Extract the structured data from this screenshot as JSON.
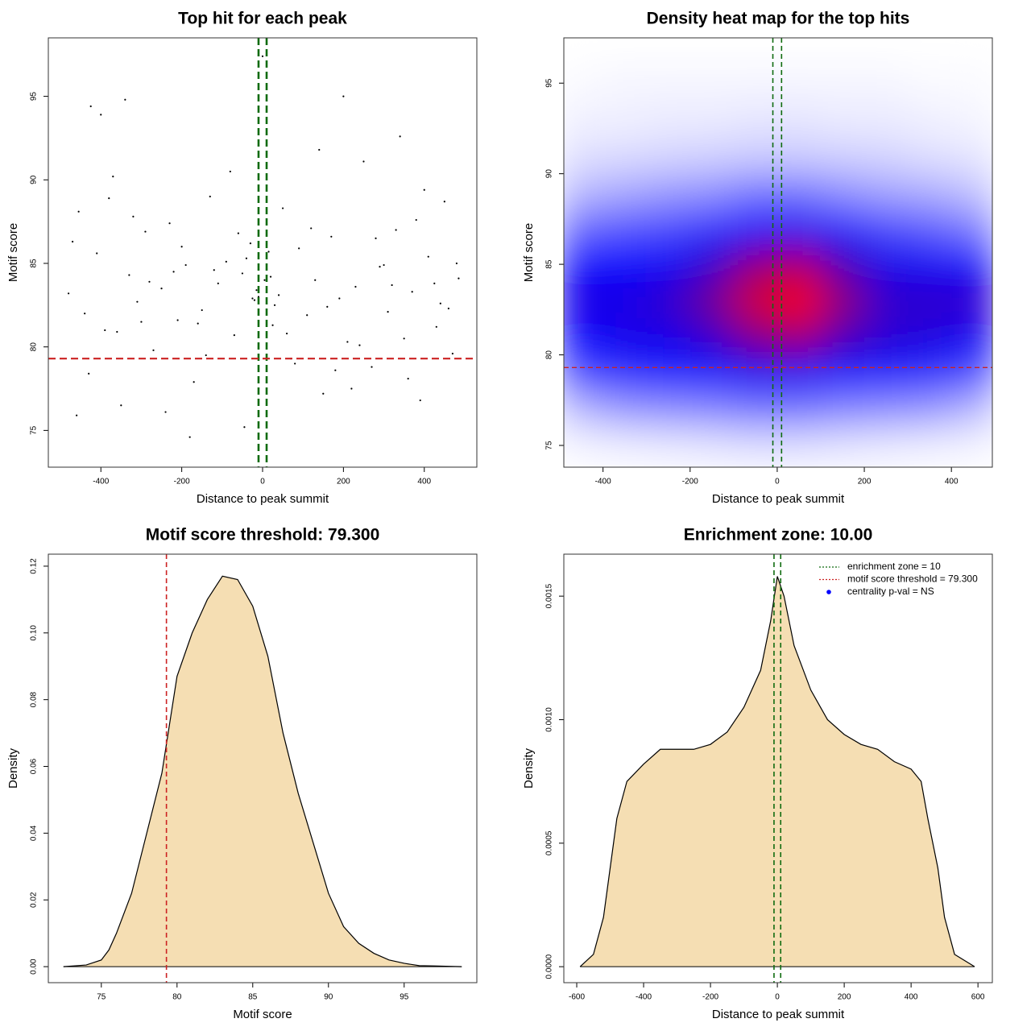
{
  "chart_data": [
    {
      "type": "scatter",
      "title": "Top hit for each peak",
      "xlabel": "Distance to peak summit",
      "ylabel": "Motif score",
      "xlim": [
        -530,
        530
      ],
      "ylim": [
        72.8,
        98.5
      ],
      "xticks": [
        -400,
        -200,
        0,
        200,
        400
      ],
      "yticks": [
        75,
        80,
        85,
        90,
        95
      ],
      "color": "#000000",
      "vlines": [
        -10,
        10
      ],
      "vline_color": "#0f6b0f",
      "hlines": [
        79.3
      ],
      "hline_color": "#cc2222",
      "x": [
        -480,
        -455,
        -430,
        -410,
        -390,
        -370,
        -350,
        -330,
        -310,
        -290,
        -270,
        -250,
        -230,
        -210,
        -190,
        -170,
        -150,
        -130,
        -110,
        -90,
        -70,
        -50,
        -30,
        -10,
        10,
        30,
        50,
        70,
        90,
        110,
        130,
        150,
        170,
        190,
        210,
        230,
        250,
        270,
        290,
        310,
        330,
        350,
        370,
        390,
        410,
        430,
        450,
        470,
        485,
        -470,
        -440,
        -400,
        -360,
        -320,
        -280,
        -240,
        -200,
        -160,
        -120,
        -80,
        -40,
        -20,
        0,
        20,
        40,
        80,
        120,
        160,
        200,
        240,
        280,
        320,
        360,
        400,
        440,
        480,
        -460,
        -380,
        -300,
        -220,
        -140,
        -60,
        -15,
        15,
        60,
        140,
        220,
        300,
        380,
        460,
        -340,
        -180,
        -25,
        5,
        25,
        180,
        340,
        -425,
        -45,
        425
      ],
      "y": [
        83.2,
        88.1,
        78.4,
        85.6,
        81.0,
        90.2,
        76.5,
        84.3,
        82.7,
        86.9,
        79.8,
        83.5,
        87.4,
        81.6,
        84.9,
        77.9,
        82.2,
        89.0,
        83.8,
        85.1,
        80.7,
        84.4,
        86.2,
        83.0,
        84.7,
        82.5,
        88.3,
        79.3,
        85.9,
        81.9,
        84.0,
        77.2,
        86.6,
        82.9,
        80.3,
        83.6,
        91.1,
        78.8,
        84.8,
        82.1,
        87.0,
        80.5,
        83.3,
        76.8,
        85.4,
        81.2,
        88.7,
        79.6,
        84.1,
        86.3,
        82.0,
        93.9,
        80.9,
        87.8,
        83.9,
        76.1,
        86.0,
        81.4,
        84.6,
        90.5,
        85.3,
        82.8,
        97.4,
        84.2,
        83.1,
        79.0,
        87.1,
        82.4,
        95.0,
        80.1,
        86.5,
        83.7,
        78.1,
        89.4,
        82.6,
        85.0,
        75.9,
        88.9,
        81.5,
        84.5,
        79.5,
        86.8,
        83.4,
        85.7,
        80.8,
        91.8,
        77.5,
        84.9,
        87.6,
        82.3,
        94.8,
        74.6,
        82.9,
        84.0,
        81.3,
        78.6,
        92.6,
        94.4,
        75.2,
        83.8
      ]
    },
    {
      "type": "heatmap",
      "title": "Density heat map for the top hits",
      "xlabel": "Distance to peak summit",
      "ylabel": "Motif score",
      "xlim": [
        -490,
        494
      ],
      "ylim": [
        73.8,
        97.5
      ],
      "xticks": [
        -400,
        -200,
        0,
        200,
        400
      ],
      "yticks": [
        75,
        80,
        85,
        90,
        95
      ],
      "colorscale": [
        "#ffffff",
        "#0000ff",
        "#ff0000"
      ],
      "vlines": [
        -10,
        10
      ],
      "vline_color": "#0f6b0f",
      "hlines": [
        79.3
      ],
      "hline_color": "#cc2222",
      "x": [
        -450,
        -350,
        -250,
        -150,
        -50,
        50,
        150,
        250,
        350,
        450
      ],
      "y": [
        75,
        77,
        79,
        81,
        83,
        85,
        87,
        89,
        91,
        93,
        95
      ],
      "z": [
        [
          0.02,
          0.03,
          0.04,
          0.05,
          0.06,
          0.06,
          0.05,
          0.04,
          0.03,
          0.02
        ],
        [
          0.14,
          0.2,
          0.22,
          0.24,
          0.27,
          0.27,
          0.24,
          0.22,
          0.2,
          0.14
        ],
        [
          0.36,
          0.42,
          0.44,
          0.46,
          0.52,
          0.52,
          0.46,
          0.44,
          0.42,
          0.36
        ],
        [
          0.5,
          0.54,
          0.54,
          0.6,
          0.74,
          0.8,
          0.64,
          0.58,
          0.56,
          0.52
        ],
        [
          0.55,
          0.55,
          0.6,
          0.72,
          0.92,
          1.0,
          0.78,
          0.6,
          0.6,
          0.6
        ],
        [
          0.5,
          0.5,
          0.52,
          0.6,
          0.78,
          0.84,
          0.64,
          0.54,
          0.52,
          0.5
        ],
        [
          0.3,
          0.34,
          0.36,
          0.42,
          0.5,
          0.52,
          0.44,
          0.36,
          0.32,
          0.26
        ],
        [
          0.14,
          0.17,
          0.2,
          0.22,
          0.27,
          0.27,
          0.22,
          0.18,
          0.16,
          0.12
        ],
        [
          0.06,
          0.07,
          0.08,
          0.09,
          0.1,
          0.1,
          0.09,
          0.08,
          0.06,
          0.05
        ],
        [
          0.03,
          0.03,
          0.04,
          0.04,
          0.05,
          0.05,
          0.04,
          0.04,
          0.03,
          0.02
        ],
        [
          0.01,
          0.02,
          0.02,
          0.02,
          0.02,
          0.02,
          0.02,
          0.02,
          0.01,
          0.01
        ]
      ]
    },
    {
      "type": "area",
      "title": "Motif score threshold: 79.300",
      "xlabel": "Motif score",
      "ylabel": "Density",
      "xlim": [
        71.5,
        99.8
      ],
      "ylim": [
        -0.0048,
        0.1236
      ],
      "xticks": [
        75,
        80,
        85,
        90,
        95
      ],
      "yticks": [
        {
          "value": 0,
          "label": "0.00"
        },
        {
          "value": 0.02,
          "label": "0.02"
        },
        {
          "value": 0.04,
          "label": "0.04"
        },
        {
          "value": 0.06,
          "label": "0.06"
        },
        {
          "value": 0.08,
          "label": "0.08"
        },
        {
          "value": 0.1,
          "label": "0.10"
        },
        {
          "value": 0.12,
          "label": "0.12"
        }
      ],
      "color": "#f5deb3",
      "vlines": [
        79.3
      ],
      "vline_color": "#cc2222",
      "x": [
        72.5,
        74,
        75,
        75.5,
        76,
        77,
        78,
        79,
        80,
        81,
        82,
        83,
        84,
        85,
        86,
        87,
        88,
        89,
        90,
        91,
        92,
        93,
        94,
        95,
        96,
        97,
        98,
        98.8
      ],
      "y": [
        0,
        0.0005,
        0.002,
        0.005,
        0.01,
        0.022,
        0.04,
        0.058,
        0.087,
        0.1,
        0.11,
        0.117,
        0.116,
        0.108,
        0.093,
        0.07,
        0.052,
        0.037,
        0.022,
        0.012,
        0.007,
        0.004,
        0.002,
        0.001,
        0.0003,
        0.0002,
        0.0001,
        0
      ]
    },
    {
      "type": "area",
      "title": "Enrichment zone: 10.00",
      "xlabel": "Distance to peak summit",
      "ylabel": "Density",
      "xlim": [
        -638.6,
        643
      ],
      "ylim": [
        -6.47e-05,
        0.00167
      ],
      "xticks": [
        -600,
        -400,
        -200,
        0,
        200,
        400,
        600
      ],
      "yticks": [
        {
          "value": 0,
          "label": "0.0000"
        },
        {
          "value": 0.0005,
          "label": "0.0005"
        },
        {
          "value": 0.001,
          "label": "0.0010"
        },
        {
          "value": 0.0015,
          "label": "0.0015"
        }
      ],
      "color": "#f5deb3",
      "vlines": [
        -10,
        10
      ],
      "vline_color": "#0f6b0f",
      "x": [
        -590,
        -550,
        -520,
        -500,
        -480,
        -450,
        -400,
        -350,
        -300,
        -250,
        -200,
        -150,
        -100,
        -50,
        -20,
        0,
        20,
        50,
        100,
        150,
        200,
        250,
        300,
        350,
        400,
        430,
        450,
        480,
        500,
        530,
        590
      ],
      "y": [
        0,
        5e-05,
        0.0002,
        0.0004,
        0.0006,
        0.00075,
        0.00082,
        0.00088,
        0.00088,
        0.00088,
        0.0009,
        0.00095,
        0.00105,
        0.0012,
        0.0014,
        0.00158,
        0.0015,
        0.0013,
        0.00112,
        0.001,
        0.00094,
        0.0009,
        0.00088,
        0.00083,
        0.0008,
        0.00075,
        0.0006,
        0.0004,
        0.0002,
        5e-05,
        0
      ],
      "legend_position": "topright",
      "legend": [
        {
          "label": "enrichment zone = 10",
          "color": "#0f6b0f",
          "style": "dotted"
        },
        {
          "label": "motif score threshold = 79.300",
          "color": "#cc2222",
          "style": "dotted"
        },
        {
          "label": "centrality p-val = NS",
          "color": "#0000ff",
          "style": "point"
        }
      ]
    }
  ]
}
